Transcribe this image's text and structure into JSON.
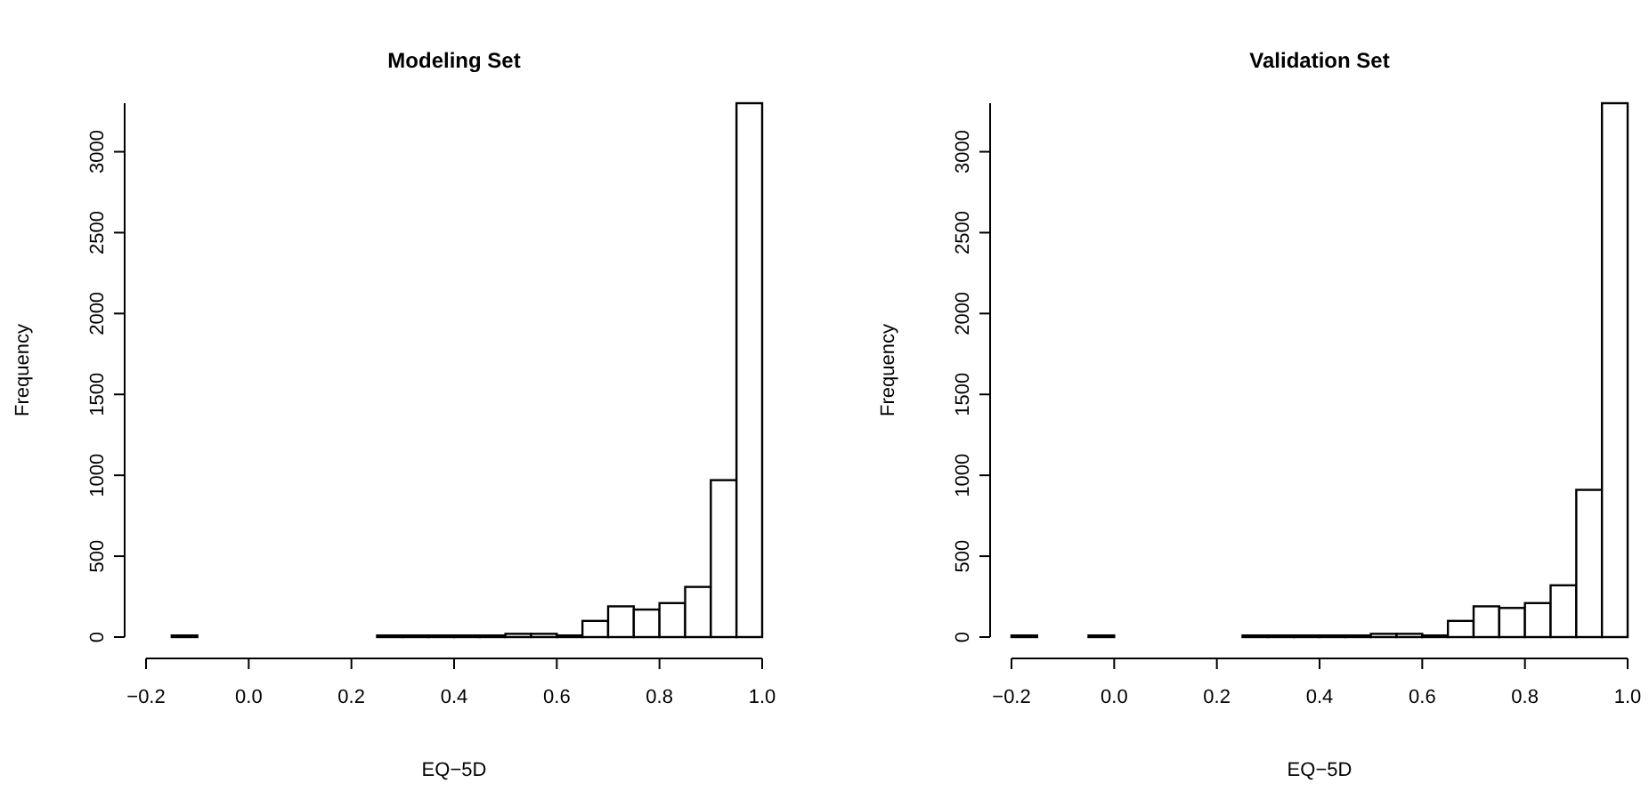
{
  "chart_data": [
    {
      "type": "histogram",
      "title": "Modeling Set",
      "xlabel": "EQ−5D",
      "ylabel": "Frequency",
      "color": "#ffffff",
      "bins": [
        -0.2,
        -0.15,
        -0.1,
        -0.05,
        0,
        0.05,
        0.1,
        0.15,
        0.2,
        0.25,
        0.3,
        0.35,
        0.4,
        0.45,
        0.5,
        0.55,
        0.6,
        0.65,
        0.7,
        0.75,
        0.8,
        0.85,
        0.9,
        0.95,
        1.0
      ],
      "values": [
        0,
        10,
        0,
        0,
        0,
        0,
        0,
        0,
        0,
        10,
        10,
        10,
        10,
        10,
        20,
        20,
        10,
        100,
        190,
        170,
        210,
        310,
        970,
        3300
      ],
      "xlim": [
        -0.2,
        1.0
      ],
      "xticks": [
        {
          "value": -0.2,
          "label": "−0.2"
        },
        {
          "value": 0,
          "label": "0.0"
        },
        {
          "value": 0.2,
          "label": "0.2"
        },
        {
          "value": 0.4,
          "label": "0.4"
        },
        {
          "value": 0.6,
          "label": "0.6"
        },
        {
          "value": 0.8,
          "label": "0.8"
        },
        {
          "value": 1.0,
          "label": "1.0"
        }
      ],
      "ylim": [
        0,
        3300
      ],
      "yticks": [
        0,
        500,
        1000,
        1500,
        2000,
        2500,
        3000
      ],
      "grid": false
    },
    {
      "type": "histogram",
      "title": "Validation Set",
      "xlabel": "EQ−5D",
      "ylabel": "Frequency",
      "color": "#ffffff",
      "bins": [
        -0.2,
        -0.15,
        -0.1,
        -0.05,
        0,
        0.05,
        0.1,
        0.15,
        0.2,
        0.25,
        0.3,
        0.35,
        0.4,
        0.45,
        0.5,
        0.55,
        0.6,
        0.65,
        0.7,
        0.75,
        0.8,
        0.85,
        0.9,
        0.95,
        1.0
      ],
      "values": [
        10,
        0,
        0,
        10,
        0,
        0,
        0,
        0,
        0,
        10,
        10,
        10,
        10,
        10,
        20,
        20,
        10,
        100,
        190,
        180,
        210,
        320,
        910,
        3300
      ],
      "xlim": [
        -0.2,
        1.0
      ],
      "xticks": [
        {
          "value": -0.2,
          "label": "−0.2"
        },
        {
          "value": 0,
          "label": "0.0"
        },
        {
          "value": 0.2,
          "label": "0.2"
        },
        {
          "value": 0.4,
          "label": "0.4"
        },
        {
          "value": 0.6,
          "label": "0.6"
        },
        {
          "value": 0.8,
          "label": "0.8"
        },
        {
          "value": 1.0,
          "label": "1.0"
        }
      ],
      "ylim": [
        0,
        3300
      ],
      "yticks": [
        0,
        500,
        1000,
        1500,
        2000,
        2500,
        3000
      ],
      "grid": false
    }
  ]
}
